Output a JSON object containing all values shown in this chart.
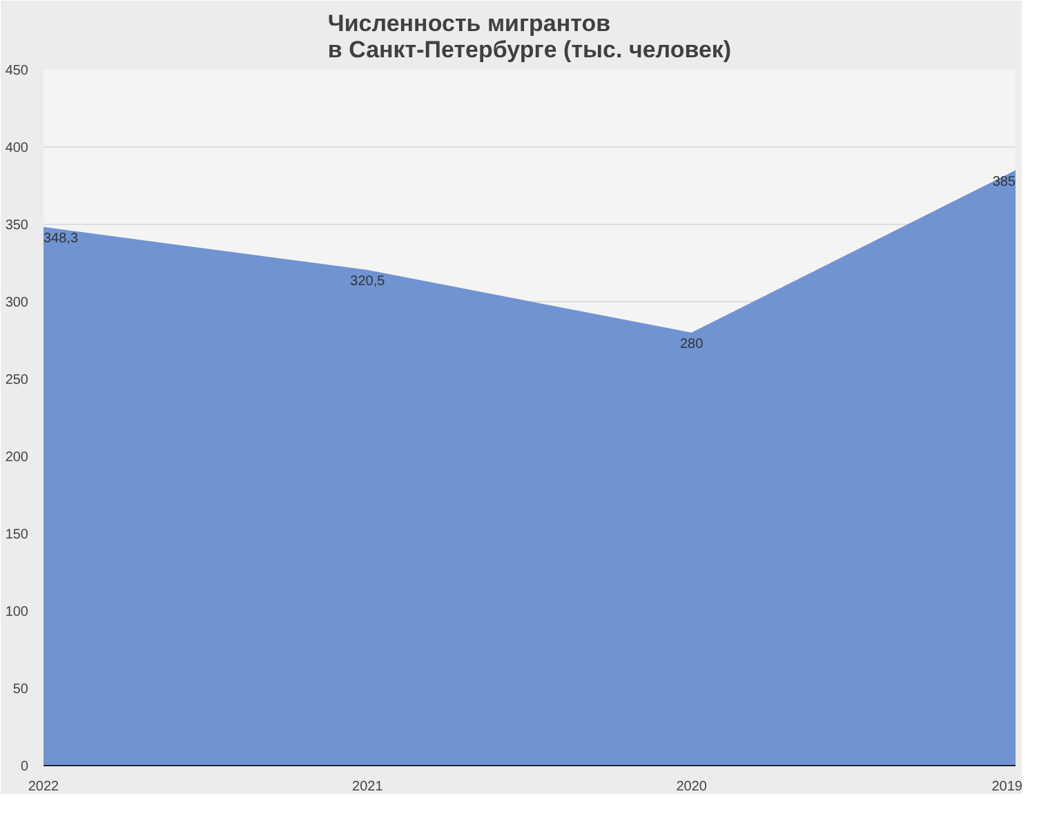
{
  "chart_data": {
    "type": "area",
    "title": "Численность мигрантов\nв Санкт-Петербурге (тыс. человек)",
    "categories": [
      "2022",
      "2021",
      "2020",
      "2019"
    ],
    "values": [
      348.3,
      320.5,
      280,
      385
    ],
    "value_labels": [
      "348,3",
      "320,5",
      "280",
      "385"
    ],
    "color": "#7094d2",
    "ylim": [
      0,
      450
    ],
    "yticks": [
      0,
      50,
      100,
      150,
      200,
      250,
      300,
      350,
      400,
      450
    ],
    "grid": "y"
  }
}
